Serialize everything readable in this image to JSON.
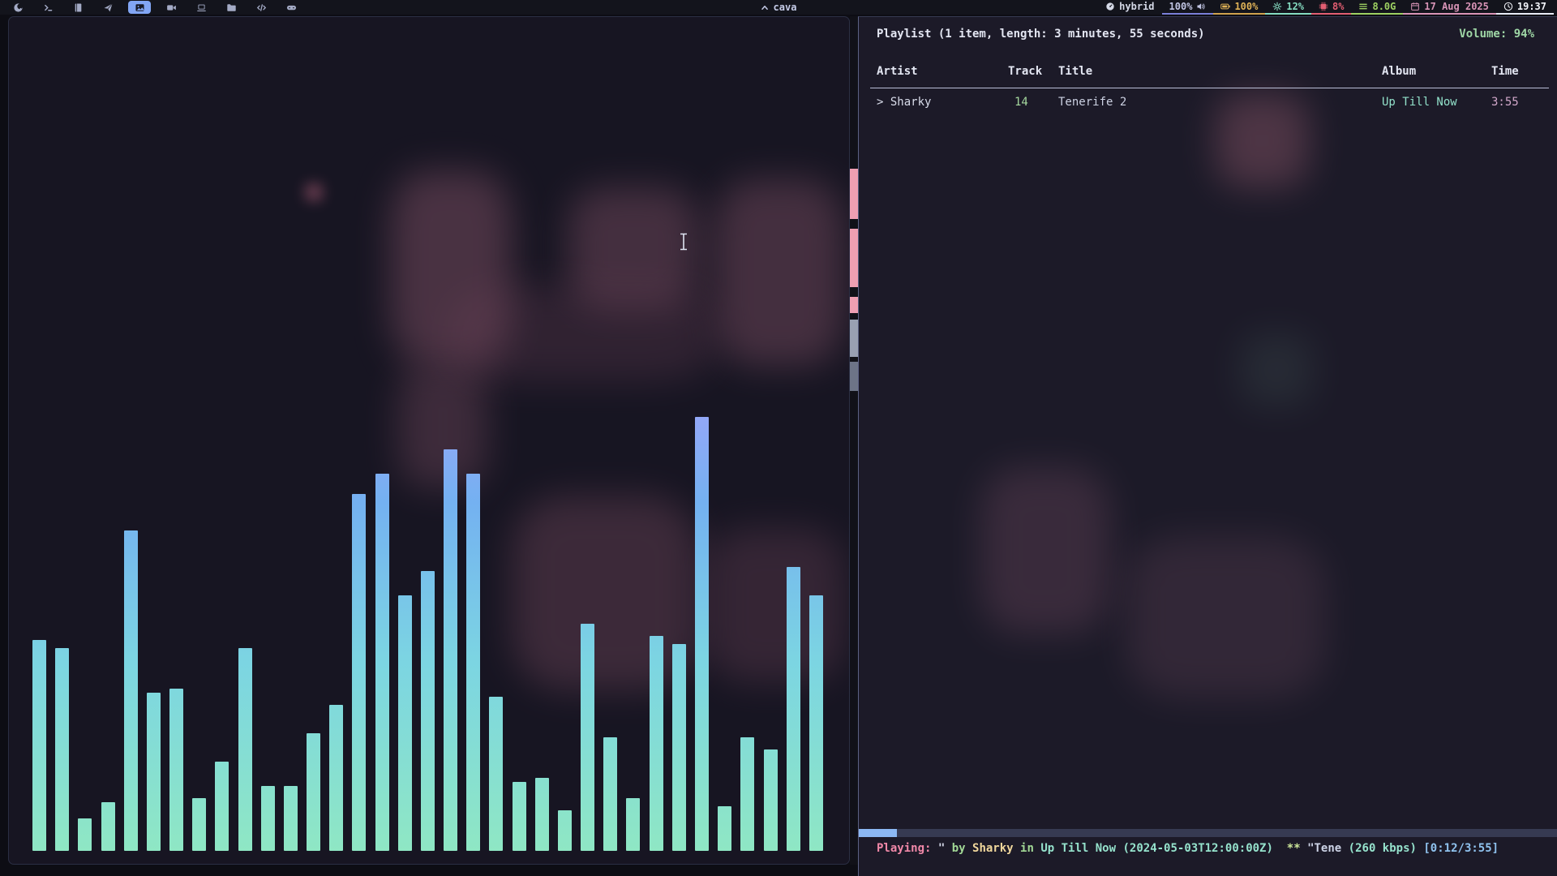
{
  "topbar": {
    "window_title": "cava",
    "workspaces": [
      {
        "id": "browser",
        "icon": "browser-icon",
        "active": false
      },
      {
        "id": "terminal",
        "icon": "terminal-icon",
        "active": false
      },
      {
        "id": "book",
        "icon": "book-icon",
        "active": false
      },
      {
        "id": "send",
        "icon": "send-icon",
        "active": false
      },
      {
        "id": "image",
        "icon": "image-icon",
        "active": true
      },
      {
        "id": "video",
        "icon": "video-camera-icon",
        "active": false
      },
      {
        "id": "laptop",
        "icon": "laptop-icon",
        "active": false
      },
      {
        "id": "files",
        "icon": "folder-icon",
        "active": false
      },
      {
        "id": "code",
        "icon": "code-icon",
        "active": false
      },
      {
        "id": "games",
        "icon": "gamepad-icon",
        "active": false
      }
    ],
    "tray": [
      {
        "id": "layout",
        "icon": "gauge-icon",
        "label": "hybrid",
        "color": "#d6dae8",
        "underline": "",
        "icon_after": false
      },
      {
        "id": "volume",
        "icon": "speaker-icon",
        "label": "100%",
        "color": "#c2c6e4",
        "underline": "#7a7fd8",
        "icon_after": true
      },
      {
        "id": "battery",
        "icon": "battery-icon",
        "label": "100%",
        "color": "#dfb257",
        "underline": "#cfa24e",
        "icon_after": false
      },
      {
        "id": "cpu",
        "icon": "gear-icon",
        "label": "12%",
        "color": "#85dcc1",
        "underline": "#85dcc1",
        "icon_after": false
      },
      {
        "id": "temperature",
        "icon": "chip-icon",
        "label": "8%",
        "color": "#e25e72",
        "underline": "#e25e72",
        "icon_after": false
      },
      {
        "id": "memory",
        "icon": "ram-icon",
        "label": "8.0G",
        "color": "#9ed162",
        "underline": "#9ed162",
        "icon_after": false
      },
      {
        "id": "date",
        "icon": "calendar-icon",
        "label": "17 Aug 2025",
        "color": "#d894b6",
        "underline": "#d894b6",
        "icon_after": false
      },
      {
        "id": "clock",
        "icon": "clock-icon",
        "label": "19:37",
        "color": "#f2f4fa",
        "underline": "#e8ebf5",
        "icon_after": false
      }
    ]
  },
  "visualizer": {
    "bar_heights_pct": [
      26,
      25,
      4,
      6,
      39.5,
      19.5,
      20,
      6.5,
      11,
      25,
      8,
      8,
      14.5,
      18,
      44,
      46.5,
      31.5,
      34.5,
      49.5,
      46.5,
      19,
      8.5,
      9,
      5,
      28,
      14,
      6.5,
      26.5,
      25.5,
      53.5,
      5.5,
      14,
      12.5,
      35,
      31.5
    ],
    "gradient": {
      "bottom": "#8fe7c4",
      "mid": "#7cd5e2",
      "upper": "#74b1f1",
      "top": "#9fa3fa"
    }
  },
  "player": {
    "header": {
      "title": "Playlist (1 item, length: 3 minutes, 55 seconds)",
      "volume": "Volume: 94%"
    },
    "columns": [
      "Artist",
      "Track",
      "Title",
      "Album",
      "Time"
    ],
    "rows": [
      {
        "artist": "> Sharky",
        "track": "14",
        "title": "Tenerife 2",
        "album": "Up Till Now",
        "time": "3:55"
      }
    ],
    "status": {
      "progress_pct": 5.5,
      "segments": [
        {
          "text": "Playing: ",
          "color": "#f088a8"
        },
        {
          "text": "\" ",
          "color": "#d2d6e6"
        },
        {
          "text": "by ",
          "color": "#a2d996"
        },
        {
          "text": "Sharky ",
          "color": "#f0d79c"
        },
        {
          "text": "in ",
          "color": "#a2d996"
        },
        {
          "text": "Up Till Now ",
          "color": "#95e2cc"
        },
        {
          "text": "(2024-05-03T12:00:00Z) ",
          "color": "#95e2cc"
        },
        {
          "text": " ** ",
          "color": "#cde79a"
        },
        {
          "text": "\"Tene ",
          "color": "#ccd3e6"
        },
        {
          "text": "(260 kbps) ",
          "color": "#95e2cc"
        },
        {
          "text": "[0:12/3:55]",
          "color": "#8fc2ee"
        }
      ]
    }
  }
}
